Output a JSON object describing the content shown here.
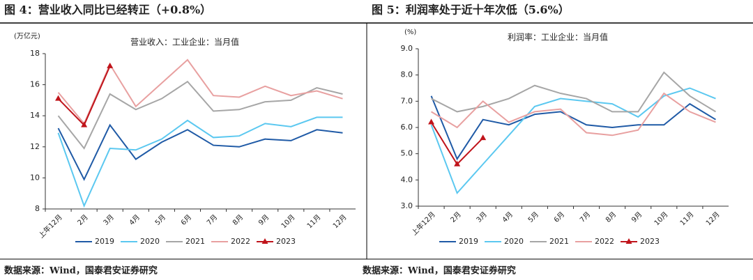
{
  "chart_data": [
    {
      "type": "line",
      "title": "图 4：营业收入同比已经转正（+0.8%）",
      "subtitle": "营业收入：工业企业：当月值",
      "ylabel": "(万亿元)",
      "categories": [
        "上年12月",
        "2月",
        "3月",
        "4月",
        "5月",
        "6月",
        "7月",
        "8月",
        "9月",
        "10月",
        "11月",
        "12月"
      ],
      "ylim": [
        8,
        18
      ],
      "yticks": [
        8,
        10,
        12,
        14,
        16,
        18
      ],
      "legend": "bottom",
      "series": [
        {
          "name": "2019",
          "color": "#1f5aa6",
          "values": [
            13.2,
            9.9,
            13.4,
            11.2,
            12.3,
            13.1,
            12.1,
            12.0,
            12.5,
            12.4,
            13.1,
            12.9
          ]
        },
        {
          "name": "2020",
          "color": "#5bc8f0",
          "values": [
            12.9,
            8.2,
            11.9,
            11.8,
            12.5,
            13.7,
            12.6,
            12.7,
            13.5,
            13.3,
            13.9,
            13.9
          ]
        },
        {
          "name": "2021",
          "color": "#a6a6a6",
          "values": [
            14.0,
            11.9,
            15.4,
            14.4,
            15.1,
            16.2,
            14.3,
            14.4,
            14.9,
            15.0,
            15.8,
            15.4
          ]
        },
        {
          "name": "2022",
          "color": "#e8a0a0",
          "values": [
            15.5,
            13.5,
            17.3,
            14.6,
            16.1,
            17.6,
            15.3,
            15.2,
            15.9,
            15.3,
            15.6,
            15.1
          ]
        },
        {
          "name": "2023",
          "color": "#c0141b",
          "marker": "triangle",
          "values": [
            15.1,
            13.4,
            17.2,
            null,
            null,
            null,
            null,
            null,
            null,
            null,
            null,
            null
          ]
        }
      ],
      "source": "数据来源：Wind，国泰君安证券研究"
    },
    {
      "type": "line",
      "title": "图 5：利润率处于近十年次低（5.6%）",
      "subtitle": "利润率：工业企业：当月值",
      "ylabel": "(%)",
      "categories": [
        "上年12月",
        "2月",
        "3月",
        "4月",
        "5月",
        "6月",
        "7月",
        "8月",
        "9月",
        "10月",
        "11月",
        "12月"
      ],
      "ylim": [
        3,
        9
      ],
      "yticks": [
        {
          "value": 3,
          "label": "3.0"
        },
        {
          "value": 4,
          "label": "4.0"
        },
        {
          "value": 5,
          "label": "5.0"
        },
        {
          "value": 6,
          "label": "6.0"
        },
        {
          "value": 7,
          "label": "7.0"
        },
        {
          "value": 8,
          "label": "8.0"
        },
        {
          "value": 9,
          "label": "9.0"
        }
      ],
      "legend": "bottom",
      "series": [
        {
          "name": "2019",
          "color": "#1f5aa6",
          "values": [
            7.2,
            4.8,
            6.3,
            6.1,
            6.5,
            6.6,
            6.1,
            6.0,
            6.1,
            6.1,
            6.9,
            6.3
          ]
        },
        {
          "name": "2020",
          "color": "#5bc8f0",
          "values": [
            6.1,
            3.5,
            4.6,
            5.7,
            6.8,
            7.1,
            7.0,
            6.9,
            6.4,
            7.2,
            7.5,
            7.1
          ]
        },
        {
          "name": "2021",
          "color": "#a6a6a6",
          "values": [
            7.1,
            6.6,
            6.8,
            7.1,
            7.6,
            7.3,
            7.1,
            6.6,
            6.6,
            8.1,
            7.2,
            6.6
          ]
        },
        {
          "name": "2022",
          "color": "#e8a0a0",
          "values": [
            6.6,
            6.0,
            7.0,
            6.2,
            6.6,
            6.7,
            5.8,
            5.7,
            5.9,
            7.3,
            6.6,
            6.2
          ]
        },
        {
          "name": "2023",
          "color": "#c0141b",
          "marker": "triangle",
          "values": [
            6.2,
            4.6,
            5.6,
            null,
            null,
            null,
            null,
            null,
            null,
            null,
            null,
            null
          ]
        }
      ],
      "source": "数据来源：Wind，国泰君安证券研究"
    }
  ]
}
